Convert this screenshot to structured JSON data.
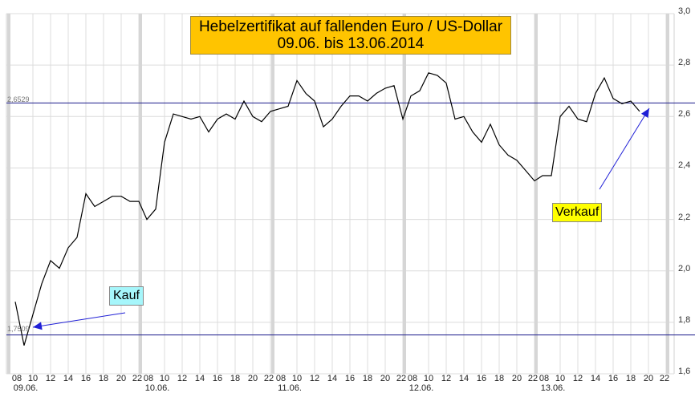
{
  "title": {
    "line1": "Hebelzertifikat auf fallenden Euro / US-Dollar",
    "line2": "09.06. bis 13.06.2014"
  },
  "annotations": {
    "buy_label": "Kauf",
    "sell_label": "Verkauf",
    "buy_level_label": "1,7509",
    "sell_level_label": "2,6529"
  },
  "colors": {
    "title_bg": "#ffc400",
    "buy_bg": "#a6f6fb",
    "sell_bg": "#ffff00",
    "ref_line": "#1a1a8c",
    "arrow": "#1f1fd6",
    "series": "#000000",
    "grid": "#dcdcdc",
    "day_separator": "#d6d6d6"
  },
  "y_axis": {
    "ticks": [
      "3,0",
      "2,8",
      "2,6",
      "2,4",
      "2,2",
      "2,0",
      "1,8",
      "1,6"
    ]
  },
  "x_axis": {
    "hour_ticks": [
      "08",
      "10",
      "12",
      "14",
      "16",
      "18",
      "20",
      "22"
    ],
    "days": [
      "09.06.",
      "10.06.",
      "11.06.",
      "12.06.",
      "13.06."
    ]
  },
  "chart_data": {
    "type": "line",
    "title": "Hebelzertifikat auf fallenden Euro / US-Dollar 09.06. bis 13.06.2014",
    "xlabel": "",
    "ylabel": "",
    "ylim": [
      1.6,
      3.0
    ],
    "grid": true,
    "legend": "none",
    "x_categories_days": [
      "09.06.",
      "10.06.",
      "11.06.",
      "12.06.",
      "13.06."
    ],
    "x_hours_per_day": [
      "08",
      "09",
      "10",
      "11",
      "12",
      "13",
      "14",
      "15",
      "16",
      "17",
      "18",
      "19",
      "20",
      "21",
      "22"
    ],
    "reference_lines": [
      {
        "label": "2,6529",
        "value": 2.6529
      },
      {
        "label": "1,7509",
        "value": 1.7509
      }
    ],
    "annotations": [
      {
        "text": "Kauf",
        "points_to": 1.7509,
        "day": "09.06."
      },
      {
        "text": "Verkauf",
        "points_to": 2.6529,
        "day": "13.06."
      }
    ],
    "series": [
      {
        "name": "Hebelzertifikat",
        "points": [
          [
            "09.06. 08",
            1.88
          ],
          [
            "09.06. 09",
            1.71
          ],
          [
            "09.06. 10",
            1.83
          ],
          [
            "09.06. 11",
            1.95
          ],
          [
            "09.06. 12",
            2.04
          ],
          [
            "09.06. 13",
            2.01
          ],
          [
            "09.06. 14",
            2.09
          ],
          [
            "09.06. 15",
            2.13
          ],
          [
            "09.06. 16",
            2.3
          ],
          [
            "09.06. 17",
            2.25
          ],
          [
            "09.06. 18",
            2.27
          ],
          [
            "09.06. 19",
            2.29
          ],
          [
            "09.06. 20",
            2.29
          ],
          [
            "09.06. 21",
            2.27
          ],
          [
            "09.06. 22",
            2.27
          ],
          [
            "10.06. 08",
            2.2
          ],
          [
            "10.06. 09",
            2.24
          ],
          [
            "10.06. 10",
            2.5
          ],
          [
            "10.06. 11",
            2.61
          ],
          [
            "10.06. 12",
            2.6
          ],
          [
            "10.06. 13",
            2.59
          ],
          [
            "10.06. 14",
            2.6
          ],
          [
            "10.06. 15",
            2.54
          ],
          [
            "10.06. 16",
            2.59
          ],
          [
            "10.06. 17",
            2.61
          ],
          [
            "10.06. 18",
            2.59
          ],
          [
            "10.06. 19",
            2.66
          ],
          [
            "10.06. 20",
            2.6
          ],
          [
            "10.06. 21",
            2.58
          ],
          [
            "10.06. 22",
            2.62
          ],
          [
            "11.06. 08",
            2.63
          ],
          [
            "11.06. 09",
            2.64
          ],
          [
            "11.06. 10",
            2.74
          ],
          [
            "11.06. 11",
            2.69
          ],
          [
            "11.06. 12",
            2.66
          ],
          [
            "11.06. 13",
            2.56
          ],
          [
            "11.06. 14",
            2.59
          ],
          [
            "11.06. 15",
            2.64
          ],
          [
            "11.06. 16",
            2.68
          ],
          [
            "11.06. 17",
            2.68
          ],
          [
            "11.06. 18",
            2.66
          ],
          [
            "11.06. 19",
            2.69
          ],
          [
            "11.06. 20",
            2.71
          ],
          [
            "11.06. 21",
            2.72
          ],
          [
            "11.06. 22",
            2.59
          ],
          [
            "12.06. 08",
            2.68
          ],
          [
            "12.06. 09",
            2.7
          ],
          [
            "12.06. 10",
            2.77
          ],
          [
            "12.06. 11",
            2.76
          ],
          [
            "12.06. 12",
            2.73
          ],
          [
            "12.06. 13",
            2.59
          ],
          [
            "12.06. 14",
            2.6
          ],
          [
            "12.06. 15",
            2.54
          ],
          [
            "12.06. 16",
            2.5
          ],
          [
            "12.06. 17",
            2.57
          ],
          [
            "12.06. 18",
            2.49
          ],
          [
            "12.06. 19",
            2.45
          ],
          [
            "12.06. 20",
            2.43
          ],
          [
            "12.06. 21",
            2.39
          ],
          [
            "12.06. 22",
            2.35
          ],
          [
            "13.06. 08",
            2.37
          ],
          [
            "13.06. 09",
            2.37
          ],
          [
            "13.06. 10",
            2.6
          ],
          [
            "13.06. 11",
            2.64
          ],
          [
            "13.06. 12",
            2.59
          ],
          [
            "13.06. 13",
            2.58
          ],
          [
            "13.06. 14",
            2.69
          ],
          [
            "13.06. 15",
            2.75
          ],
          [
            "13.06. 16",
            2.67
          ],
          [
            "13.06. 17",
            2.65
          ],
          [
            "13.06. 18",
            2.66
          ],
          [
            "13.06. 19",
            2.62
          ]
        ]
      }
    ]
  }
}
